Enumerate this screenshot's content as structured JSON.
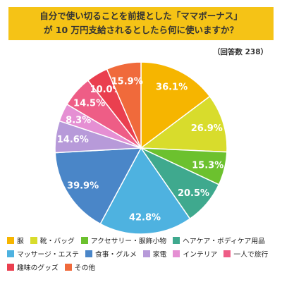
{
  "header": {
    "title_line1": "自分で使い切ることを前提とした「ママボーナス」",
    "title_line2": "が 10 万円支給されるとしたら何に使いますか？",
    "respondents": "（回答数 238）"
  },
  "chart_data": {
    "type": "pie",
    "unit": "%",
    "title": "自分で使い切ることを前提とした「ママボーナス」が 10 万円支給されるとしたら何に使いますか？",
    "note": "（回答数 238）",
    "categories": [
      "服",
      "靴・バッグ",
      "アクセサリー・服飾小物",
      "ヘアケア・ボディケア用品",
      "マッサージ・エステ",
      "食事・グルメ",
      "家電",
      "インテリア",
      "一人で旅行",
      "趣味のグッズ",
      "その他"
    ],
    "values": [
      36.1,
      26.9,
      15.3,
      20.5,
      42.8,
      39.9,
      14.6,
      8.3,
      14.5,
      10.0,
      15.9
    ],
    "labels": [
      "36.1%",
      "26.9%",
      "15.3%",
      "20.5%",
      "42.8%",
      "39.9%",
      "14.6%",
      "8.3%",
      "14.5%",
      "10.0%",
      "15.9%"
    ],
    "colors": [
      "#f6b500",
      "#d8dc2c",
      "#6cc12e",
      "#3fa98e",
      "#4eb2e0",
      "#4a86c8",
      "#b79ad9",
      "#e58fd3",
      "#ee5d86",
      "#ea3f4f",
      "#f06a3b"
    ],
    "legend_position": "bottom",
    "slice_order": "clockwise from top"
  }
}
